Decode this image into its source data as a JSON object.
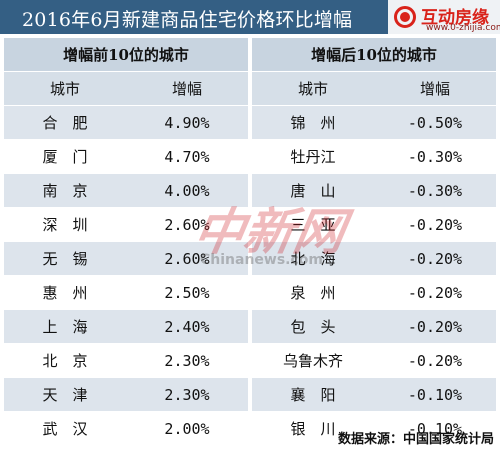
{
  "title": "2016年6月新建商品住宅价格环比增幅",
  "logo": {
    "name": "互动房缘",
    "url": "www.0-zhijia.com"
  },
  "left_section": {
    "heading": "增幅前10位的城市",
    "columns": [
      "城市",
      "增幅"
    ],
    "rows": [
      {
        "city": "合　肥",
        "value": "4.90%"
      },
      {
        "city": "厦　门",
        "value": "4.70%"
      },
      {
        "city": "南　京",
        "value": "4.00%"
      },
      {
        "city": "深　圳",
        "value": "2.60%"
      },
      {
        "city": "无　锡",
        "value": "2.60%"
      },
      {
        "city": "惠　州",
        "value": "2.50%"
      },
      {
        "city": "上　海",
        "value": "2.40%"
      },
      {
        "city": "北　京",
        "value": "2.30%"
      },
      {
        "city": "天　津",
        "value": "2.30%"
      },
      {
        "city": "武　汉",
        "value": "2.00%"
      }
    ]
  },
  "right_section": {
    "heading": "增幅后10位的城市",
    "columns": [
      "城市",
      "增幅"
    ],
    "rows": [
      {
        "city": "锦　州",
        "value": "-0.50%"
      },
      {
        "city": "牡丹江",
        "value": "-0.30%"
      },
      {
        "city": "唐　山",
        "value": "-0.30%"
      },
      {
        "city": "三　亚",
        "value": "-0.20%"
      },
      {
        "city": "北　海",
        "value": "-0.20%"
      },
      {
        "city": "泉　州",
        "value": "-0.20%"
      },
      {
        "city": "包　头",
        "value": "-0.20%"
      },
      {
        "city": "乌鲁木齐",
        "value": "-0.20%"
      },
      {
        "city": "襄　阳",
        "value": "-0.10%"
      },
      {
        "city": "银　川",
        "value": "-0.10%"
      }
    ]
  },
  "watermark": {
    "cn": "中新网",
    "en": "Chinanews.com"
  },
  "source": "数据来源：中国国家统计局"
}
